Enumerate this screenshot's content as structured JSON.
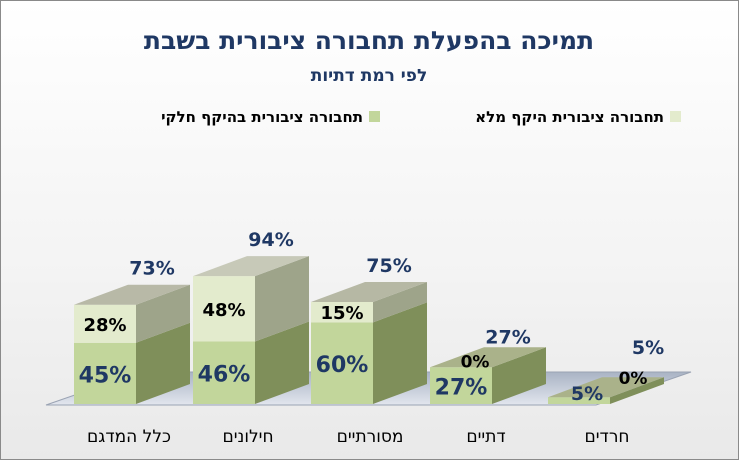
{
  "chart_data": {
    "type": "bar",
    "stacked": true,
    "three_d": true,
    "title": "תמיכה בהפעלת תחבורה ציבורית בשבת",
    "subtitle": "לפי רמת דתיות",
    "categories": [
      "כלל המדגם",
      "חילונים",
      "מסורתיים",
      "דתיים",
      "חרדים"
    ],
    "series": [
      {
        "name": "תחבורה ציבורית בהיקף חלקי",
        "values": [
          45,
          46,
          60,
          27,
          5
        ],
        "color": "#c2d69b"
      },
      {
        "name": "תחבורה ציבורית היקף מלא",
        "values": [
          28,
          48,
          15,
          0,
          0
        ],
        "color": "#e3ebcd"
      }
    ],
    "series_labels": [
      [
        "45%",
        "46%",
        "60%",
        "27%",
        "5%"
      ],
      [
        "28%",
        "48%",
        "15%",
        "0%",
        "0%"
      ]
    ],
    "total_labels": [
      "73%",
      "94%",
      "75%",
      "27%",
      "5%"
    ],
    "ylim": [
      0,
      100
    ],
    "legend_position": "top",
    "grid": false
  },
  "colors": {
    "title": "#1f3864",
    "side_partial": "#7f8f5a",
    "side_full": "#9ea48a",
    "floor": "#c3cad6"
  }
}
